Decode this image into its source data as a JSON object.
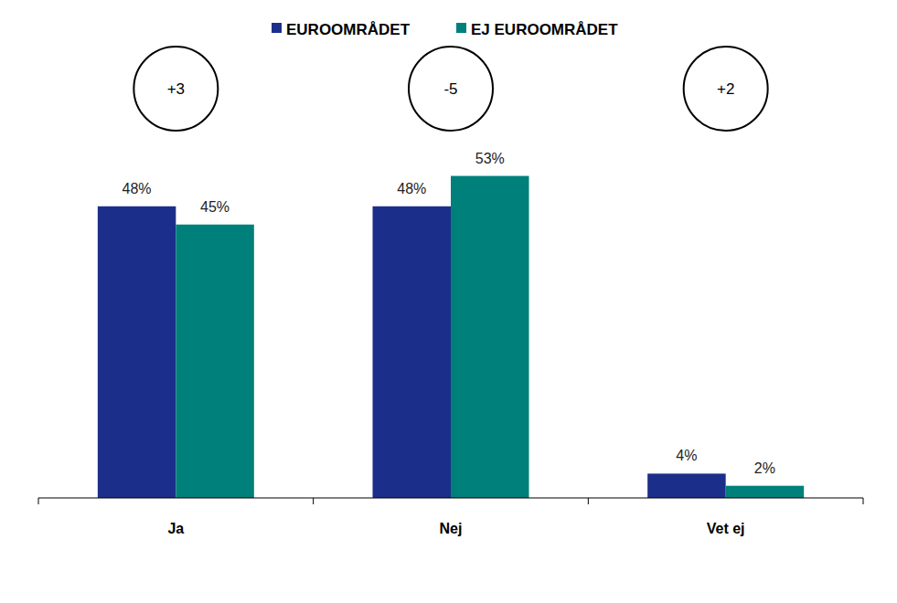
{
  "chart_data": {
    "type": "bar",
    "categories": [
      "Ja",
      "Nej",
      "Vet ej"
    ],
    "series": [
      {
        "name": "EUROOMRÅDET",
        "color": "#1b2f8a",
        "values": [
          48,
          48,
          4
        ],
        "value_labels": [
          "48%",
          "48%",
          "4%"
        ]
      },
      {
        "name": "EJ EUROOMRÅDET",
        "color": "#00807a",
        "values": [
          45,
          53,
          2
        ],
        "value_labels": [
          "45%",
          "53%",
          "2%"
        ]
      }
    ],
    "annotations": [
      "+3",
      "-5",
      "+2"
    ],
    "ylim": [
      0,
      60
    ],
    "grid": false,
    "legend": "top",
    "data_labels": true,
    "tick_labels": "x"
  }
}
